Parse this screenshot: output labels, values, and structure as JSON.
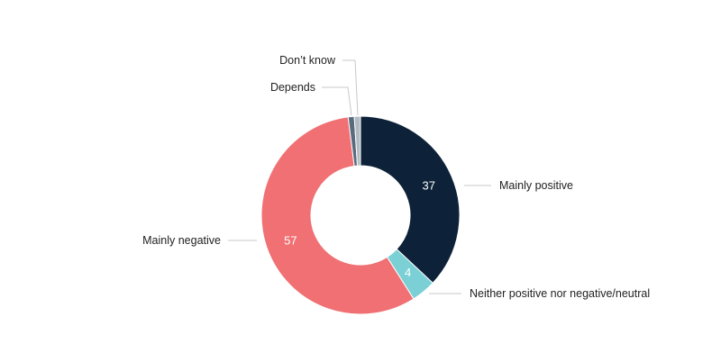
{
  "chart_data": {
    "type": "pie",
    "variant": "donut",
    "slices": [
      {
        "name": "Mainly positive",
        "value": 37,
        "value_label": "37",
        "color": "#0d2239"
      },
      {
        "name": "Neither positive nor negative/neutral",
        "value": 4,
        "value_label": "4",
        "color": "#7ad0d4"
      },
      {
        "name": "Mainly negative",
        "value": 57,
        "value_label": "57",
        "color": "#f07073"
      },
      {
        "name": "Depends",
        "value": 1,
        "value_label": "",
        "color": "#5a6b7e"
      },
      {
        "name": "Don’t know",
        "value": 1,
        "value_label": "",
        "color": "#b2bbc3"
      }
    ]
  }
}
